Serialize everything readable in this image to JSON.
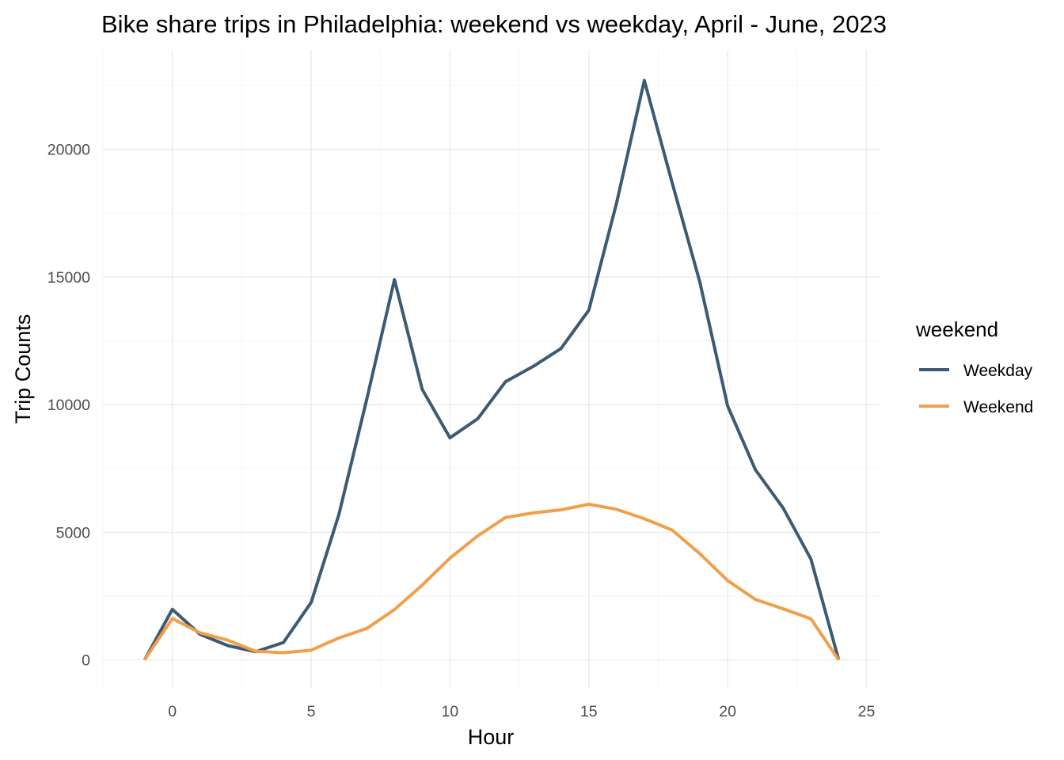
{
  "chart_data": {
    "type": "line",
    "title": "Bike share trips in Philadelphia: weekend vs weekday, April - June, 2023",
    "xlabel": "Hour",
    "ylabel": "Trip Counts",
    "xlim": [
      -2.5,
      25.5
    ],
    "ylim": [
      -1130,
      23900
    ],
    "x_ticks": [
      0,
      5,
      10,
      15,
      20,
      25
    ],
    "y_ticks": [
      0,
      5000,
      10000,
      15000,
      20000
    ],
    "x_tick_labels": [
      "0",
      "5",
      "10",
      "15",
      "20",
      "25"
    ],
    "y_tick_labels": [
      "0",
      "5000",
      "10000",
      "15000",
      "20000"
    ],
    "grid": true,
    "legend": {
      "title": "weekend",
      "position": "right"
    },
    "x": [
      -1,
      0,
      1,
      2,
      3,
      4,
      5,
      6,
      7,
      8,
      9,
      10,
      11,
      12,
      13,
      14,
      15,
      16,
      17,
      18,
      19,
      20,
      21,
      22,
      23,
      24
    ],
    "series": [
      {
        "name": "Weekday",
        "color": "#3b5a73",
        "values": [
          0,
          1980,
          1000,
          560,
          320,
          680,
          2250,
          5700,
          10200,
          14900,
          10600,
          8700,
          9450,
          10900,
          11500,
          12200,
          13700,
          17900,
          22700,
          18700,
          14800,
          9950,
          7450,
          5950,
          3950,
          0
        ]
      },
      {
        "name": "Weekend",
        "color": "#f0a04b",
        "values": [
          0,
          1620,
          1060,
          770,
          340,
          280,
          380,
          860,
          1230,
          1970,
          2930,
          3990,
          4860,
          5580,
          5760,
          5880,
          6100,
          5900,
          5530,
          5090,
          4160,
          3110,
          2370,
          2000,
          1610,
          0
        ]
      }
    ]
  }
}
